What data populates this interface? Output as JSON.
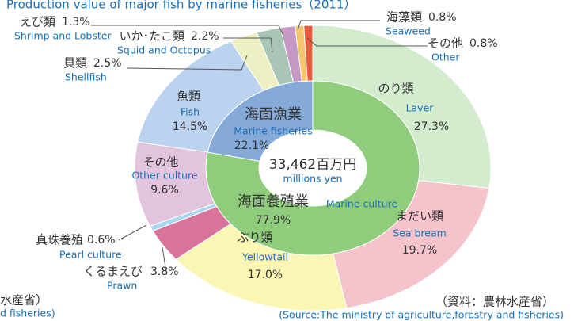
{
  "chart_data": {
    "type": "nested_donut",
    "title": "Production value of major fish by marine fisheries（2011）",
    "center_text": "33,462百万円",
    "center_subtext": "millions yen",
    "source": "（資料：農林水産省）",
    "source_en": "(Source:The ministry of agriculture,forestry and fisheries)",
    "cropped_source": "水産省）",
    "cropped_source_en": "d fisheries)",
    "inner": {
      "categories": [
        "海面養殖業",
        "海面漁業"
      ],
      "categories_en": [
        "Marine culture",
        "Marine fisheries"
      ],
      "values": [
        77.9,
        22.1
      ],
      "value_labels": [
        "77.9%",
        "22.1%"
      ],
      "colors": [
        "#8fcd7c",
        "#86aad8"
      ]
    },
    "outer": {
      "categories": [
        "のり類",
        "まだい類",
        "ぶり類",
        "くるまえび",
        "真珠養殖",
        "その他",
        "魚類",
        "貝類",
        "いか･たこ類",
        "えび類",
        "海藻類",
        "その他"
      ],
      "categories_en": [
        "Laver",
        "Sea bream",
        "Yellowtail",
        "Prawn",
        "Pearl culture",
        "Other culture",
        "Fish",
        "Shellfish",
        "Squid and Octopus",
        "Shrimp and Lobster",
        "Seaweed",
        "Other"
      ],
      "values": [
        27.3,
        19.7,
        17.0,
        3.8,
        0.6,
        9.6,
        14.5,
        2.5,
        2.2,
        1.3,
        0.8,
        0.8
      ],
      "value_labels": [
        "27.3%",
        "19.7%",
        "17.0%",
        "3.8%",
        "0.6%",
        "9.6%",
        "14.5%",
        "2.5%",
        "2.2%",
        "1.3%",
        "0.8%",
        "0.8%"
      ],
      "colors": [
        "#d4ecce",
        "#f4c3cb",
        "#fbf6b4",
        "#d8739b",
        "#a8d8f0",
        "#e3c4dd",
        "#bcd3ef",
        "#eef0c4",
        "#a9c5b5",
        "#c598c5",
        "#f6c56c",
        "#e65a3e"
      ]
    }
  }
}
